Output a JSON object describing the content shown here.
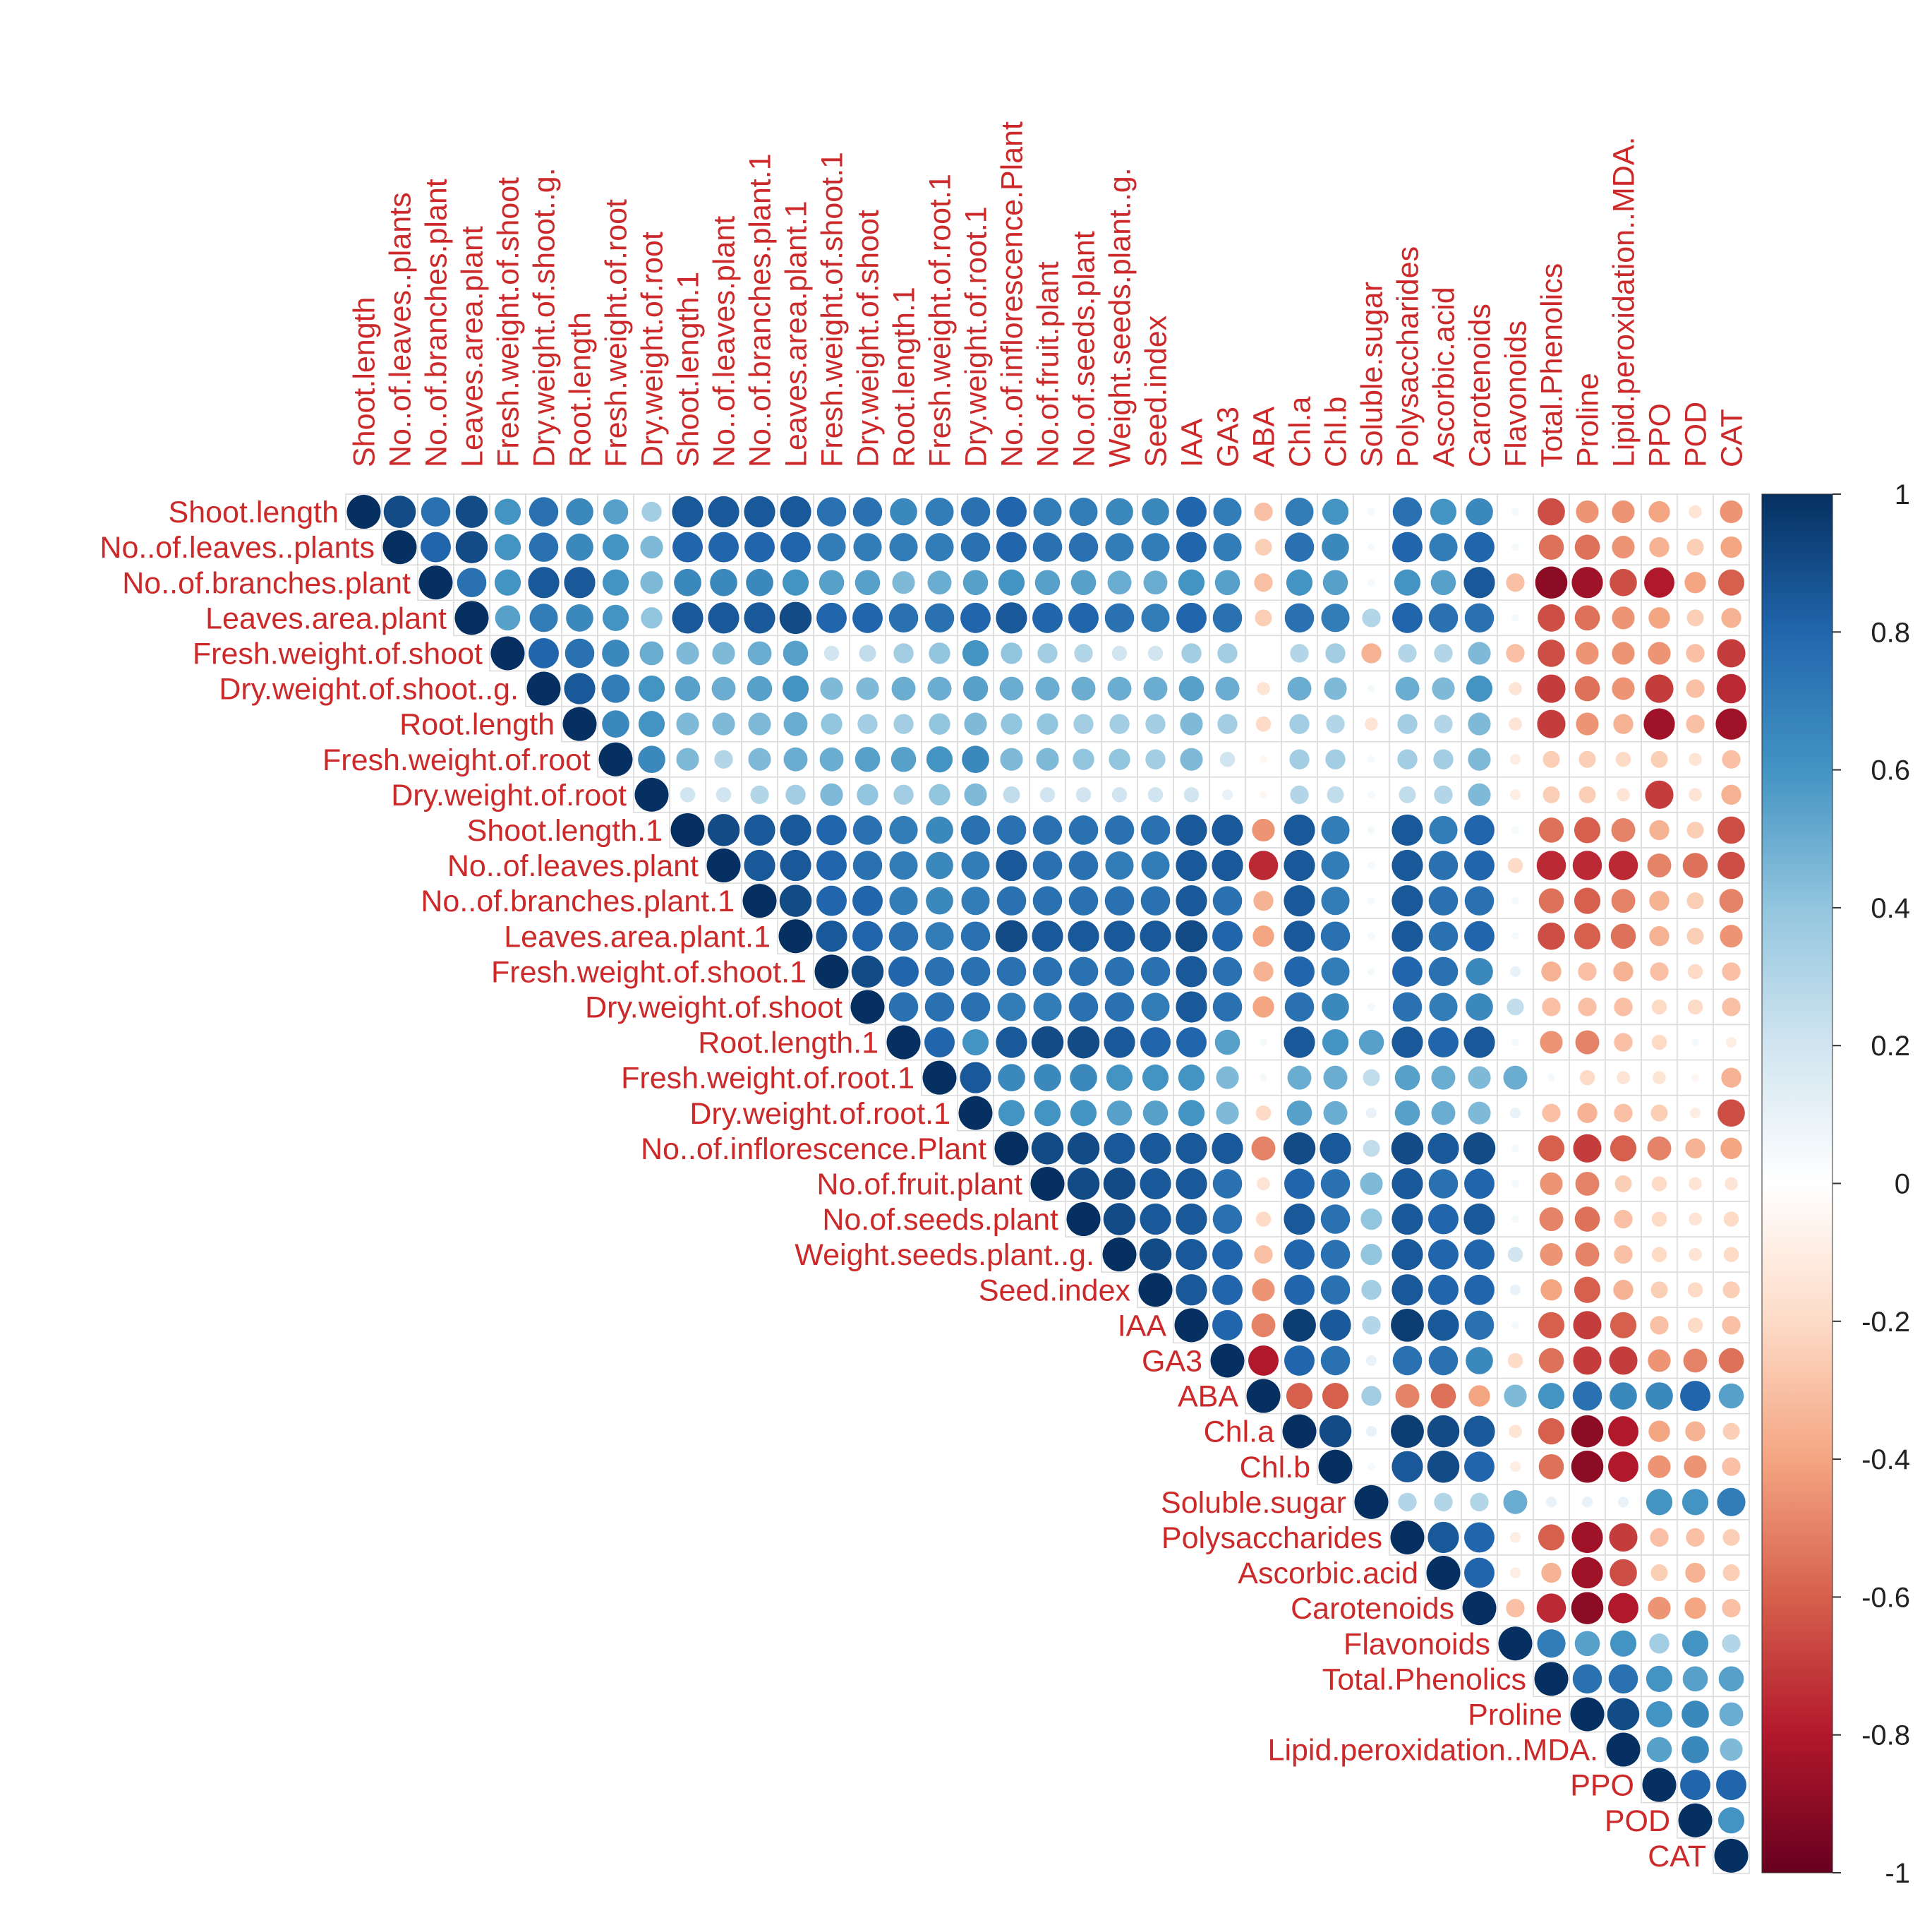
{
  "chart_data": {
    "type": "heatmap",
    "subtype": "upper-triangular correlation plot (circle glyphs)",
    "variables": [
      "Shoot.length",
      "No..of.leaves..plants",
      "No..of.branches.plant",
      "Leaves.area.plant",
      "Fresh.weight.of.shoot",
      "Dry.weight.of.shoot..g.",
      "Root.length",
      "Fresh.weight.of.root",
      "Dry.weight.of.root",
      "Shoot.length.1",
      "No..of.leaves.plant",
      "No..of.branches.plant.1",
      "Leaves.area.plant.1",
      "Fresh.weight.of.shoot.1",
      "Dry.weight.of.shoot",
      "Root.length.1",
      "Fresh.weight.of.root.1",
      "Dry.weight.of.root.1",
      "No..of.inflorescence.Plant",
      "No.of.fruit.plant",
      "No.of.seeds.plant",
      "Weight.seeds.plant..g.",
      "Seed.index",
      "IAA",
      "GA3",
      "ABA",
      "Chl.a",
      "Chl.b",
      "Soluble.sugar",
      "Polysaccharides",
      "Ascorbic.acid",
      "Carotenoids",
      "Flavonoids",
      "Total.Phenolics",
      "Proline",
      "Lipid.peroxidation..MDA.",
      "PPO",
      "POD",
      "CAT"
    ],
    "matrix_upper": [
      [
        1.0,
        0.9,
        0.75,
        0.9,
        0.6,
        0.75,
        0.65,
        0.55,
        0.35,
        0.85,
        0.85,
        0.85,
        0.85,
        0.75,
        0.75,
        0.65,
        0.7,
        0.75,
        0.8,
        0.7,
        0.7,
        0.65,
        0.65,
        0.8,
        0.7,
        -0.3,
        0.7,
        0.6,
        0.05,
        0.75,
        0.6,
        0.65,
        0.05,
        -0.65,
        -0.45,
        -0.45,
        -0.4,
        -0.15,
        -0.45
      ],
      [
        1.0,
        0.8,
        0.9,
        0.6,
        0.75,
        0.65,
        0.6,
        0.45,
        0.8,
        0.8,
        0.8,
        0.8,
        0.7,
        0.7,
        0.7,
        0.7,
        0.75,
        0.8,
        0.75,
        0.75,
        0.7,
        0.7,
        0.8,
        0.7,
        -0.25,
        0.75,
        0.65,
        0.05,
        0.8,
        0.7,
        0.8,
        0.05,
        -0.55,
        -0.55,
        -0.45,
        -0.35,
        -0.25,
        -0.4
      ],
      [
        1.0,
        0.75,
        0.6,
        0.85,
        0.85,
        0.6,
        0.45,
        0.65,
        0.65,
        0.65,
        0.6,
        0.55,
        0.55,
        0.45,
        0.5,
        0.55,
        0.6,
        0.55,
        0.55,
        0.5,
        0.5,
        0.6,
        0.55,
        -0.3,
        0.6,
        0.55,
        0.05,
        0.6,
        0.55,
        0.85,
        -0.3,
        -0.9,
        -0.85,
        -0.65,
        -0.8,
        -0.4,
        -0.6
      ],
      [
        1.0,
        0.55,
        0.7,
        0.65,
        0.6,
        0.4,
        0.85,
        0.85,
        0.85,
        0.9,
        0.8,
        0.8,
        0.75,
        0.75,
        0.8,
        0.85,
        0.8,
        0.8,
        0.75,
        0.7,
        0.8,
        0.75,
        -0.25,
        0.75,
        0.7,
        0.3,
        0.8,
        0.75,
        0.75,
        0.05,
        -0.65,
        -0.55,
        -0.45,
        -0.4,
        -0.25,
        -0.35
      ],
      [
        1.0,
        0.8,
        0.75,
        0.65,
        0.5,
        0.45,
        0.45,
        0.5,
        0.55,
        0.2,
        0.25,
        0.35,
        0.4,
        0.6,
        0.4,
        0.35,
        0.3,
        0.2,
        0.2,
        0.35,
        0.35,
        0.0,
        0.3,
        0.35,
        -0.35,
        0.3,
        0.3,
        0.45,
        -0.3,
        -0.65,
        -0.45,
        -0.45,
        -0.45,
        -0.3,
        -0.7
      ],
      [
        1.0,
        0.85,
        0.7,
        0.6,
        0.55,
        0.5,
        0.55,
        0.6,
        0.45,
        0.45,
        0.5,
        0.5,
        0.55,
        0.5,
        0.5,
        0.5,
        0.5,
        0.5,
        0.55,
        0.5,
        -0.15,
        0.5,
        0.45,
        0.05,
        0.5,
        0.45,
        0.6,
        -0.15,
        -0.7,
        -0.55,
        -0.45,
        -0.7,
        -0.3,
        -0.75
      ],
      [
        1.0,
        0.65,
        0.6,
        0.45,
        0.45,
        0.45,
        0.5,
        0.4,
        0.35,
        0.35,
        0.4,
        0.45,
        0.4,
        0.4,
        0.35,
        0.35,
        0.35,
        0.45,
        0.35,
        -0.2,
        0.35,
        0.3,
        -0.15,
        0.35,
        0.3,
        0.45,
        -0.15,
        -0.7,
        -0.45,
        -0.35,
        -0.85,
        -0.3,
        -0.85
      ],
      [
        1.0,
        0.65,
        0.45,
        0.3,
        0.45,
        0.5,
        0.5,
        0.55,
        0.55,
        0.6,
        0.65,
        0.45,
        0.45,
        0.4,
        0.4,
        0.35,
        0.45,
        0.2,
        -0.05,
        0.35,
        0.35,
        0.05,
        0.35,
        0.35,
        0.45,
        -0.1,
        -0.25,
        -0.25,
        -0.2,
        -0.25,
        -0.15,
        -0.3
      ],
      [
        1.0,
        0.2,
        0.2,
        0.3,
        0.35,
        0.45,
        0.4,
        0.35,
        0.4,
        0.45,
        0.25,
        0.2,
        0.2,
        0.2,
        0.2,
        0.2,
        0.1,
        -0.05,
        0.3,
        0.25,
        0.05,
        0.25,
        0.3,
        0.45,
        -0.1,
        -0.25,
        -0.25,
        -0.15,
        -0.7,
        -0.15,
        -0.35
      ],
      [
        1.0,
        0.9,
        0.85,
        0.85,
        0.8,
        0.75,
        0.7,
        0.65,
        0.75,
        0.75,
        0.75,
        0.75,
        0.75,
        0.75,
        0.85,
        0.85,
        -0.45,
        0.85,
        0.7,
        0.05,
        0.85,
        0.7,
        0.8,
        0.05,
        -0.55,
        -0.6,
        -0.5,
        -0.35,
        -0.25,
        -0.65
      ],
      [
        1.0,
        0.85,
        0.85,
        0.8,
        0.75,
        0.7,
        0.65,
        0.7,
        0.85,
        0.75,
        0.75,
        0.7,
        0.7,
        0.85,
        0.85,
        -0.75,
        0.85,
        0.7,
        0.05,
        0.85,
        0.75,
        0.8,
        -0.2,
        -0.75,
        -0.75,
        -0.75,
        -0.5,
        -0.55,
        -0.65
      ],
      [
        1.0,
        0.9,
        0.8,
        0.8,
        0.7,
        0.65,
        0.7,
        0.75,
        0.75,
        0.75,
        0.75,
        0.75,
        0.85,
        0.75,
        -0.35,
        0.85,
        0.7,
        0.05,
        0.85,
        0.75,
        0.75,
        0.05,
        -0.55,
        -0.6,
        -0.5,
        -0.35,
        -0.25,
        -0.5
      ],
      [
        1.0,
        0.85,
        0.8,
        0.75,
        0.7,
        0.75,
        0.9,
        0.85,
        0.85,
        0.85,
        0.85,
        0.9,
        0.8,
        -0.4,
        0.85,
        0.75,
        0.05,
        0.85,
        0.75,
        0.8,
        0.05,
        -0.65,
        -0.6,
        -0.55,
        -0.35,
        -0.25,
        -0.45
      ],
      [
        1.0,
        0.9,
        0.8,
        0.75,
        0.75,
        0.75,
        0.75,
        0.75,
        0.75,
        0.75,
        0.85,
        0.75,
        -0.35,
        0.8,
        0.7,
        0.05,
        0.8,
        0.75,
        0.65,
        0.1,
        -0.35,
        -0.3,
        -0.35,
        -0.3,
        -0.2,
        -0.3
      ],
      [
        1.0,
        0.75,
        0.75,
        0.75,
        0.7,
        0.7,
        0.75,
        0.75,
        0.7,
        0.85,
        0.75,
        -0.4,
        0.75,
        0.65,
        0.05,
        0.75,
        0.7,
        0.65,
        0.25,
        -0.3,
        -0.3,
        -0.3,
        -0.2,
        -0.2,
        -0.3
      ],
      [
        1.0,
        0.8,
        0.6,
        0.85,
        0.9,
        0.9,
        0.85,
        0.8,
        0.8,
        0.55,
        0.05,
        0.85,
        0.6,
        0.55,
        0.85,
        0.8,
        0.85,
        0.05,
        -0.45,
        -0.5,
        -0.3,
        -0.2,
        0.05,
        -0.1
      ],
      [
        1.0,
        0.85,
        0.65,
        0.65,
        0.65,
        0.6,
        0.6,
        0.6,
        0.45,
        0.05,
        0.5,
        0.5,
        0.25,
        0.55,
        0.5,
        0.45,
        0.5,
        0.05,
        -0.2,
        -0.15,
        -0.15,
        -0.05,
        -0.35
      ],
      [
        1.0,
        0.6,
        0.6,
        0.6,
        0.55,
        0.55,
        0.6,
        0.45,
        -0.2,
        0.55,
        0.5,
        0.1,
        0.55,
        0.5,
        0.45,
        0.1,
        -0.3,
        -0.35,
        -0.3,
        -0.25,
        -0.1,
        -0.65
      ],
      [
        1.0,
        0.9,
        0.9,
        0.85,
        0.85,
        0.85,
        0.85,
        -0.5,
        0.9,
        0.85,
        0.25,
        0.9,
        0.85,
        0.9,
        0.05,
        -0.6,
        -0.7,
        -0.6,
        -0.5,
        -0.35,
        -0.4
      ],
      [
        1.0,
        0.9,
        0.9,
        0.85,
        0.85,
        0.75,
        -0.15,
        0.8,
        0.75,
        0.45,
        0.85,
        0.75,
        0.8,
        0.05,
        -0.45,
        -0.5,
        -0.25,
        -0.2,
        -0.15,
        -0.15
      ],
      [
        1.0,
        0.9,
        0.85,
        0.85,
        0.75,
        -0.2,
        0.85,
        0.75,
        0.4,
        0.85,
        0.8,
        0.85,
        0.05,
        -0.5,
        -0.55,
        -0.3,
        -0.2,
        -0.15,
        -0.2
      ],
      [
        1.0,
        0.9,
        0.85,
        0.8,
        -0.3,
        0.8,
        0.75,
        0.4,
        0.85,
        0.8,
        0.8,
        0.2,
        -0.45,
        -0.5,
        -0.3,
        -0.2,
        -0.15,
        -0.2
      ],
      [
        1.0,
        0.85,
        0.8,
        -0.45,
        0.8,
        0.75,
        0.35,
        0.85,
        0.8,
        0.8,
        0.1,
        -0.4,
        -0.6,
        -0.35,
        -0.25,
        -0.2,
        -0.25
      ],
      [
        1.0,
        0.8,
        -0.5,
        0.95,
        0.85,
        0.3,
        0.95,
        0.85,
        0.75,
        0.05,
        -0.6,
        -0.7,
        -0.6,
        -0.3,
        -0.2,
        -0.3
      ],
      [
        1.0,
        -0.8,
        0.8,
        0.75,
        0.1,
        0.75,
        0.75,
        0.65,
        -0.2,
        -0.55,
        -0.7,
        -0.7,
        -0.45,
        -0.5,
        -0.55
      ],
      [
        1.0,
        -0.6,
        -0.6,
        0.35,
        -0.5,
        -0.55,
        -0.4,
        0.45,
        0.6,
        0.75,
        0.65,
        0.65,
        0.8,
        0.55
      ],
      [
        1.0,
        0.9,
        0.1,
        0.95,
        0.9,
        0.85,
        -0.15,
        -0.6,
        -0.9,
        -0.8,
        -0.4,
        -0.35,
        -0.25
      ],
      [
        1.0,
        0.05,
        0.85,
        0.9,
        0.8,
        -0.1,
        -0.55,
        -0.9,
        -0.8,
        -0.45,
        -0.45,
        -0.3
      ],
      [
        1.0,
        0.3,
        0.3,
        0.3,
        0.5,
        0.1,
        0.1,
        0.1,
        0.6,
        0.6,
        0.7
      ],
      [
        1.0,
        0.85,
        0.8,
        -0.1,
        -0.6,
        -0.85,
        -0.7,
        -0.3,
        -0.3,
        -0.25
      ],
      [
        1.0,
        0.8,
        -0.1,
        -0.35,
        -0.85,
        -0.65,
        -0.25,
        -0.35,
        -0.25
      ],
      [
        1.0,
        -0.3,
        -0.75,
        -0.9,
        -0.8,
        -0.45,
        -0.4,
        -0.3
      ],
      [
        1.0,
        0.7,
        0.55,
        0.6,
        0.35,
        0.6,
        0.3
      ],
      [
        1.0,
        0.75,
        0.75,
        0.6,
        0.55,
        0.55
      ],
      [
        1.0,
        0.9,
        0.6,
        0.65,
        0.5
      ],
      [
        1.0,
        0.55,
        0.65,
        0.45
      ],
      [
        1.0,
        0.8,
        0.8
      ],
      [
        1.0,
        0.6
      ],
      [
        1.0
      ]
    ],
    "colorbar": {
      "range": [
        -1,
        1
      ],
      "ticks": [
        "1",
        "0.8",
        "0.6",
        "0.4",
        "0.2",
        "0",
        "-0.2",
        "-0.4",
        "-0.6",
        "-0.8",
        "-1"
      ],
      "stops": [
        "#67001F",
        "#B2182B",
        "#D6604D",
        "#F4A582",
        "#FDDBC7",
        "#FFFFFF",
        "#D1E5F0",
        "#92C5DE",
        "#4393C3",
        "#2166AC",
        "#053061"
      ],
      "position": "right"
    },
    "label_color": "#CC2A2A",
    "grid": true,
    "title": "",
    "xlabel": "",
    "ylabel": ""
  }
}
